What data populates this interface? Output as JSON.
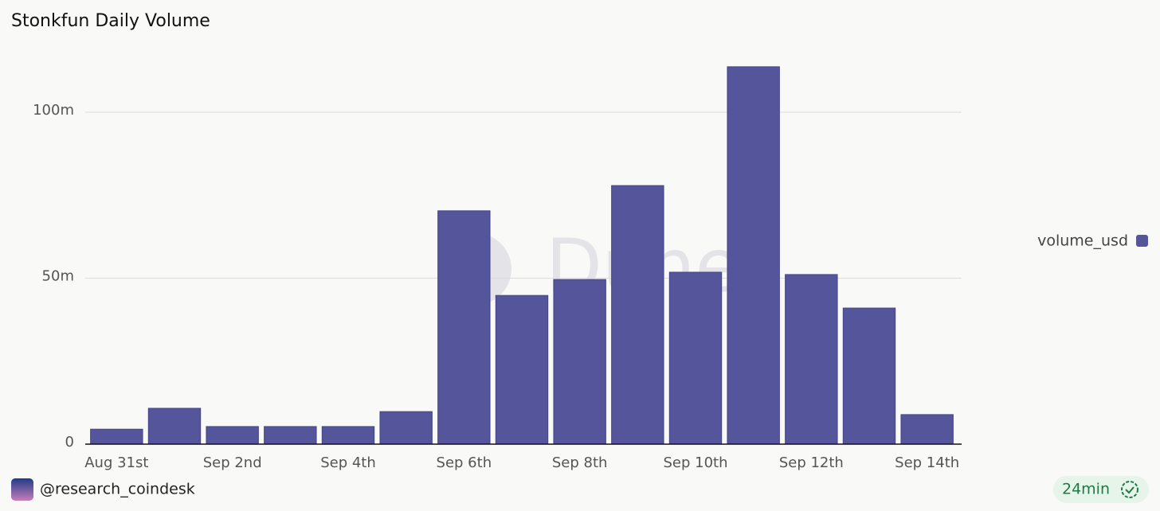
{
  "chart_data": {
    "type": "bar",
    "title": "Stonkfun Daily Volume",
    "categories": [
      "Aug 31st",
      null,
      "Sep 2nd",
      null,
      "Sep 4th",
      null,
      "Sep 6th",
      null,
      "Sep 8th",
      null,
      "Sep 10th",
      null,
      "Sep 12th",
      null,
      "Sep 14th"
    ],
    "series": [
      {
        "name": "volume_usd",
        "color": "#55559c",
        "values": [
          4500000,
          10800000,
          5300000,
          5300000,
          5300000,
          9800000,
          70300000,
          44800000,
          49600000,
          77900000,
          51800000,
          113700000,
          51100000,
          41000000,
          8900000
        ]
      }
    ],
    "ylim": [
      0,
      120000000
    ],
    "yticks": [
      {
        "value": 0,
        "label": "0"
      },
      {
        "value": 50000000,
        "label": "50m"
      },
      {
        "value": 100000000,
        "label": "100m"
      }
    ],
    "grid": true,
    "legend": "right",
    "watermark": "Dune"
  },
  "footer": {
    "author": "@research_coindesk",
    "age": "24min"
  }
}
